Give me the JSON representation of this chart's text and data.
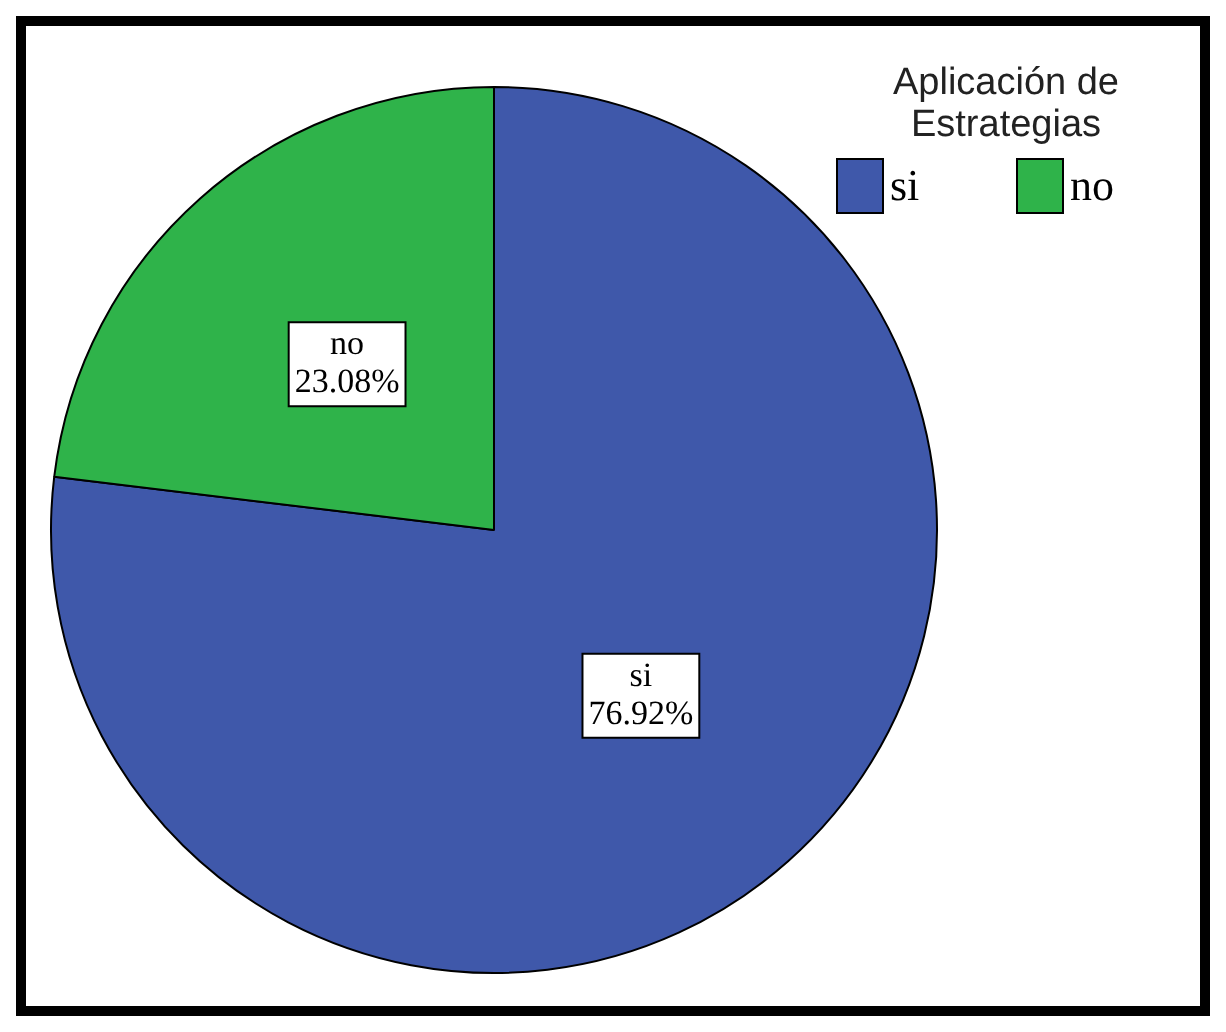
{
  "chart_data": {
    "type": "pie",
    "legend_title": "Aplicación de Estrategias",
    "legend": "top right",
    "categories": [
      "si",
      "no"
    ],
    "values": [
      76.92,
      23.08
    ],
    "colors": [
      "#3f58aa",
      "#2fb34a"
    ],
    "value_labels": [
      "76.92%",
      "23.08%"
    ]
  }
}
